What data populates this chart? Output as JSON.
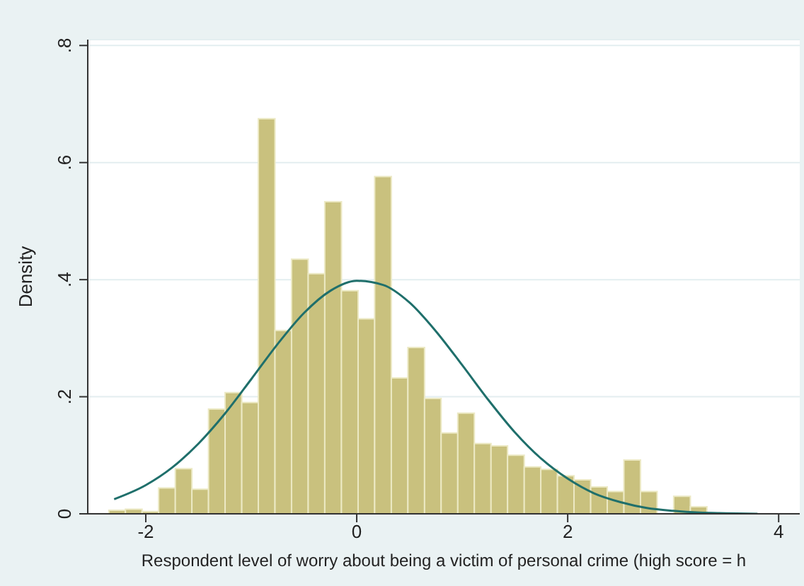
{
  "chart_data": {
    "type": "histogram",
    "xlabel": "Respondent level of worry about being a victim of personal crime (high score = h",
    "ylabel": "Density",
    "bins": [
      -2.35,
      -2.193,
      -2.035,
      -1.878,
      -1.72,
      -1.563,
      -1.405,
      -1.248,
      -1.09,
      -0.933,
      -0.775,
      -0.618,
      -0.46,
      -0.303,
      -0.145,
      0.013,
      0.17,
      0.328,
      0.485,
      0.643,
      0.8,
      0.958,
      1.115,
      1.273,
      1.43,
      1.588,
      1.745,
      1.903,
      2.06,
      2.218,
      2.375,
      2.533,
      2.69,
      2.848,
      3.005,
      3.163,
      3.32
    ],
    "values": [
      0.006,
      0.008,
      0.004,
      0.044,
      0.077,
      0.042,
      0.179,
      0.207,
      0.19,
      0.675,
      0.313,
      0.435,
      0.41,
      0.533,
      0.381,
      0.333,
      0.576,
      0.232,
      0.284,
      0.197,
      0.138,
      0.172,
      0.12,
      0.116,
      0.1,
      0.08,
      0.076,
      0.065,
      0.058,
      0.046,
      0.038,
      0.092,
      0.038,
      0,
      0.03,
      0.012
    ],
    "color": "#c9c17e",
    "series": [
      {
        "type": "line",
        "color": "#1f6f6b",
        "x": [
          -2.3,
          -2,
          -1.75,
          -1.5,
          -1.25,
          -1,
          -0.75,
          -0.5,
          -0.25,
          0,
          0.25,
          0.5,
          0.75,
          1,
          1.25,
          1.5,
          1.75,
          2,
          2.25,
          2.5,
          2.75,
          3,
          3.25,
          3.5,
          3.8
        ],
        "values": [
          0.025,
          0.049,
          0.079,
          0.12,
          0.171,
          0.23,
          0.29,
          0.343,
          0.381,
          0.398,
          0.391,
          0.361,
          0.312,
          0.254,
          0.194,
          0.139,
          0.094,
          0.06,
          0.035,
          0.02,
          0.01,
          0.005,
          0.002,
          0.001,
          0
        ]
      }
    ],
    "xlim": [
      -2.55,
      4.2
    ],
    "xticks": [
      -2,
      0,
      2,
      4
    ],
    "ylim": [
      0,
      0.81
    ],
    "yticks": [
      0,
      {
        "value": 0.2,
        "label": ".2"
      },
      {
        "value": 0.4,
        "label": ".4"
      },
      {
        "value": 0.6,
        "label": ".6"
      },
      {
        "value": 0.8,
        "label": ".8"
      }
    ],
    "grid": "y"
  }
}
